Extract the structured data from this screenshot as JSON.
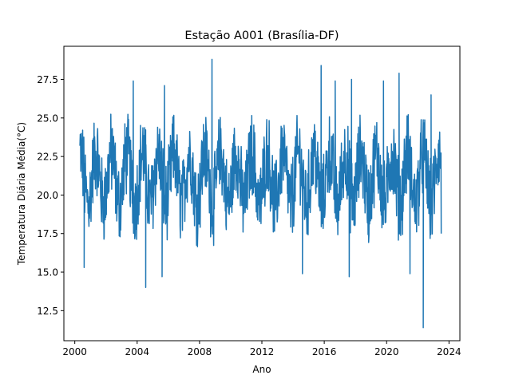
{
  "chart_data": {
    "type": "line",
    "title": "Estação A001 (Brasília-DF)",
    "xlabel": "Ano",
    "ylabel": "Temperatura Diária Média(°C)",
    "xlim": [
      1999.3,
      2024.7
    ],
    "ylim": [
      10.55,
      29.65
    ],
    "xticks": [
      2000,
      2004,
      2008,
      2012,
      2016,
      2020,
      2024
    ],
    "xtick_labels": [
      "2000",
      "2004",
      "2008",
      "2012",
      "2016",
      "2020",
      "2024"
    ],
    "yticks": [
      12.5,
      15.0,
      17.5,
      20.0,
      22.5,
      25.0,
      27.5
    ],
    "ytick_labels": [
      "12.5",
      "15.0",
      "17.5",
      "20.0",
      "22.5",
      "25.0",
      "27.5"
    ],
    "grid": false,
    "legend": null,
    "series": [
      {
        "color": "#1f77b4",
        "x_start": 2000.33,
        "x_end": 2023.5,
        "points_per_year": 52,
        "seasonal_mean": 21.1,
        "seasonal_amplitude": 1.6,
        "noise_amplitude": 2.4,
        "extremes": [
          {
            "x": 2000.6,
            "y": 15.3
          },
          {
            "x": 2004.55,
            "y": 14.0
          },
          {
            "x": 2005.6,
            "y": 14.7
          },
          {
            "x": 2008.8,
            "y": 28.8
          },
          {
            "x": 2014.6,
            "y": 14.9
          },
          {
            "x": 2017.6,
            "y": 14.7
          },
          {
            "x": 2021.5,
            "y": 14.9
          },
          {
            "x": 2022.35,
            "y": 11.4
          },
          {
            "x": 2005.75,
            "y": 27.1
          },
          {
            "x": 2003.75,
            "y": 27.4
          },
          {
            "x": 2015.8,
            "y": 28.4
          },
          {
            "x": 2016.7,
            "y": 27.4
          },
          {
            "x": 2017.75,
            "y": 27.5
          },
          {
            "x": 2019.8,
            "y": 27.4
          },
          {
            "x": 2020.8,
            "y": 27.9
          },
          {
            "x": 2022.85,
            "y": 26.5
          },
          {
            "x": 2023.5,
            "y": 17.5
          }
        ]
      }
    ]
  }
}
